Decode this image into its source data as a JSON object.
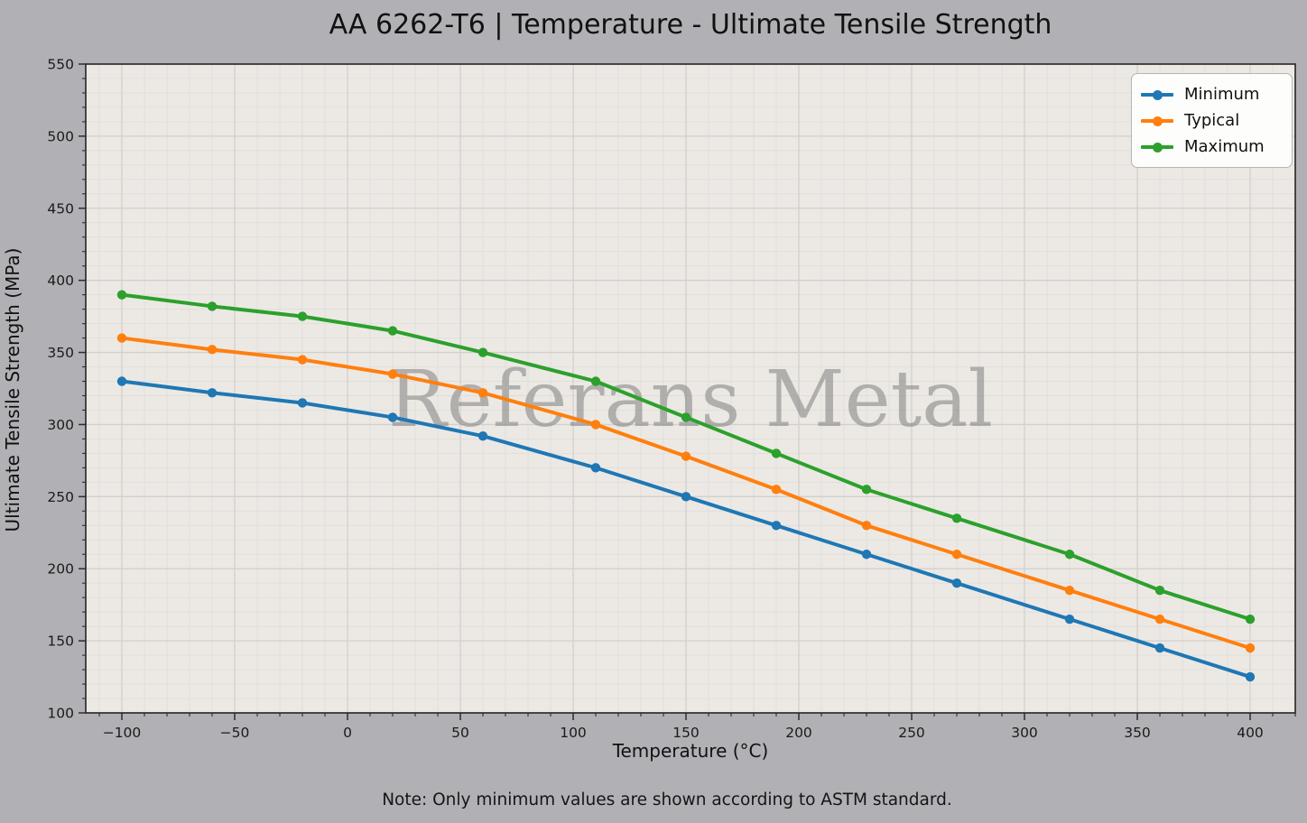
{
  "title": "AA 6262-T6 | Temperature - Ultimate Tensile Strength",
  "watermark": "Referans Metal",
  "note": "Note: Only minimum values are shown according to ASTM standard.",
  "chart_data": {
    "type": "line",
    "title": "AA 6262-T6 | Temperature - Ultimate Tensile Strength",
    "xlabel": "Temperature (°C)",
    "ylabel": "Ultimate Tensile Strength (MPa)",
    "x": [
      -100,
      -60,
      -20,
      20,
      60,
      110,
      150,
      190,
      230,
      270,
      320,
      360,
      400
    ],
    "series": [
      {
        "name": "Minimum",
        "color": "#1f77b4",
        "values": [
          330,
          322,
          315,
          305,
          292,
          270,
          250,
          230,
          210,
          190,
          165,
          145,
          125
        ]
      },
      {
        "name": "Typical",
        "color": "#ff7f0e",
        "values": [
          360,
          352,
          345,
          335,
          322,
          300,
          278,
          255,
          230,
          210,
          185,
          165,
          145
        ]
      },
      {
        "name": "Maximum",
        "color": "#2ca02c",
        "values": [
          390,
          382,
          375,
          365,
          350,
          330,
          305,
          280,
          255,
          235,
          210,
          185,
          165
        ]
      }
    ],
    "xlim": [
      -116,
      420
    ],
    "ylim": [
      100,
      550
    ],
    "xticks": [
      -100,
      -50,
      0,
      50,
      100,
      150,
      200,
      250,
      300,
      350,
      400
    ],
    "yticks": [
      100,
      150,
      200,
      250,
      300,
      350,
      400,
      450,
      500,
      550
    ],
    "minor_step_x": 10,
    "minor_step_y": 10,
    "grid": true,
    "legend_position": "top-right"
  },
  "colors": {
    "figure_bg": "#b1b1b5",
    "axes_bg": "#ece9e5",
    "grid_major": "#d2d0cc",
    "grid_minor": "#e0ded9",
    "spine": "#2e2e2e",
    "tick_text": "#1a1a1a",
    "watermark_gray": "#808080",
    "series_blue": "#1f77b4",
    "series_orange": "#ff7f0e",
    "series_green": "#2ca02c"
  }
}
